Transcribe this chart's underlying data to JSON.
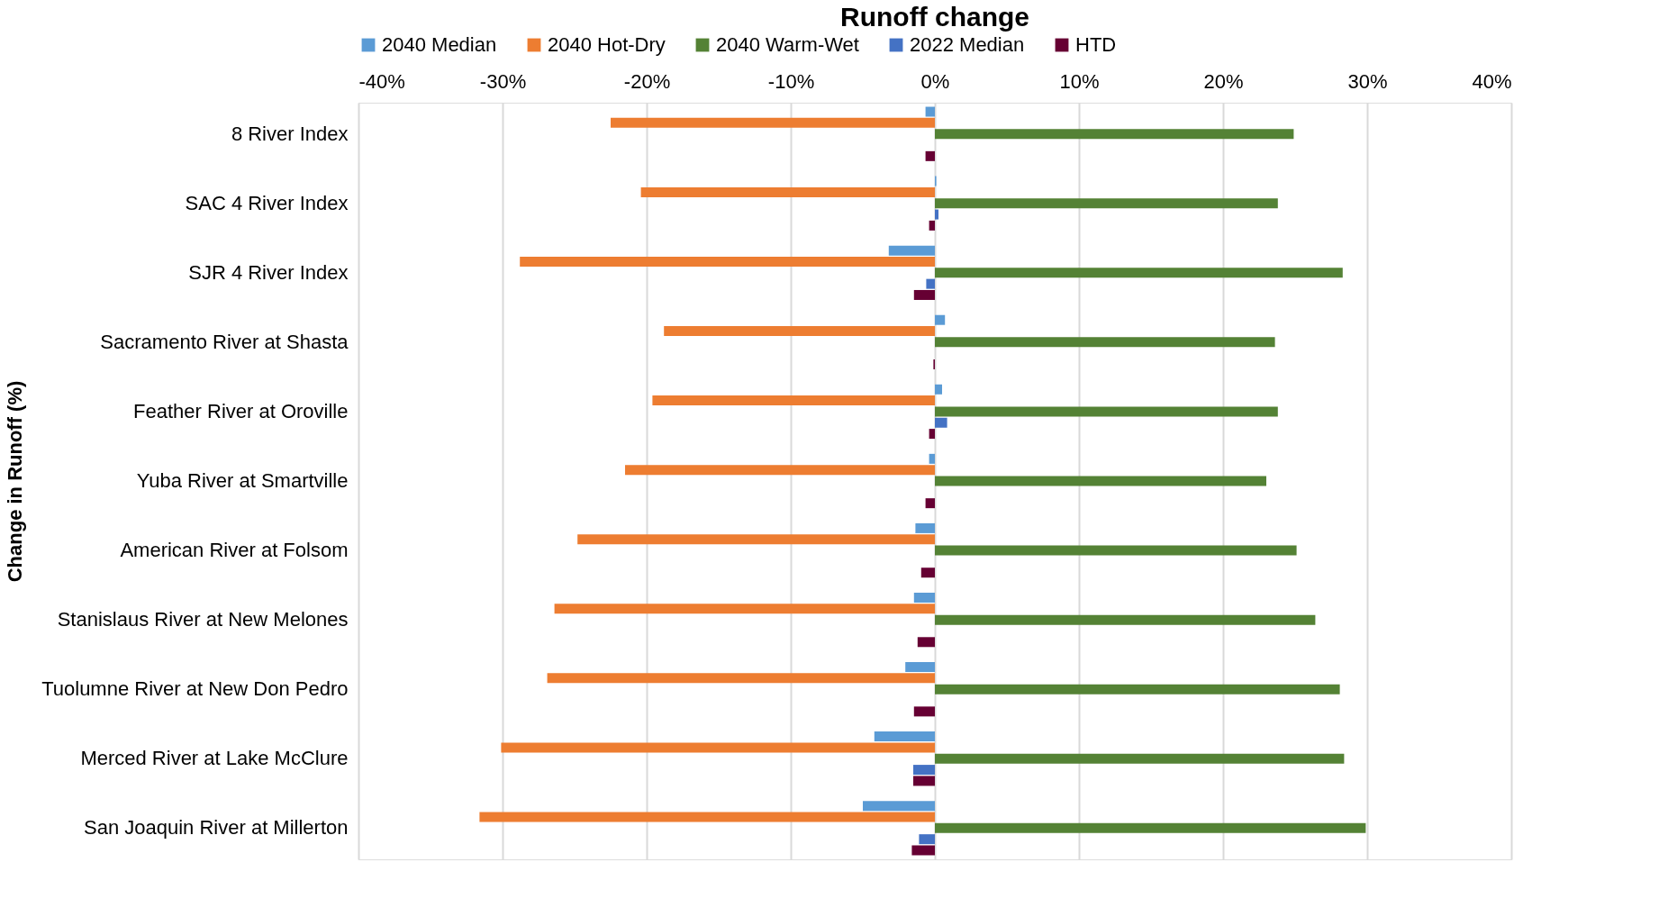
{
  "chart_data": {
    "type": "bar",
    "orientation": "horizontal",
    "title": "Runoff change",
    "ylabel": "Change in Runoff (%)",
    "categories": [
      "8 River Index",
      "SAC 4 River Index",
      "SJR 4 River Index",
      "Sacramento River at Shasta",
      "Feather River at Oroville",
      "Yuba River at Smartville",
      "American River at Folsom",
      "Stanislaus River at New Melones",
      "Tuolumne River at New Don Pedro",
      "Merced River at Lake McClure",
      "San Joaquin River at Millerton"
    ],
    "series": [
      {
        "name": "2040 Median",
        "color": "#5b9bd5",
        "values": [
          -0.65,
          0.1,
          -3.2,
          0.7,
          0.5,
          -0.4,
          -1.35,
          -1.45,
          -2.05,
          -4.2,
          -5.0
        ]
      },
      {
        "name": "2040 Hot-Dry",
        "color": "#ed7d31",
        "values": [
          -22.5,
          -20.4,
          -28.8,
          -18.8,
          -19.6,
          -21.5,
          -24.8,
          -26.4,
          -26.9,
          -30.1,
          -31.6
        ]
      },
      {
        "name": "2040 Warm-Wet",
        "color": "#548235",
        "values": [
          24.9,
          23.8,
          28.3,
          23.6,
          23.8,
          23.0,
          25.1,
          26.4,
          28.1,
          28.4,
          29.9
        ]
      },
      {
        "name": "2022 Median",
        "color": "#4472c4",
        "values": [
          null,
          0.25,
          -0.6,
          null,
          0.85,
          null,
          null,
          null,
          null,
          -1.5,
          -1.1
        ]
      },
      {
        "name": "HTD",
        "color": "#660033",
        "values": [
          -0.65,
          -0.4,
          -1.45,
          -0.1,
          -0.4,
          -0.65,
          -0.95,
          -1.2,
          -1.45,
          -1.5,
          -1.6
        ]
      }
    ],
    "xlim": [
      -40,
      40
    ],
    "xticks": [
      {
        "value": -40,
        "label": "-40%"
      },
      {
        "value": -30,
        "label": "-30%"
      },
      {
        "value": -20,
        "label": "-20%"
      },
      {
        "value": -10,
        "label": "-10%"
      },
      {
        "value": 0,
        "label": "0%"
      },
      {
        "value": 10,
        "label": "10%"
      },
      {
        "value": 20,
        "label": "20%"
      },
      {
        "value": 30,
        "label": "30%"
      },
      {
        "value": 40,
        "label": "40%"
      }
    ],
    "grid": "x",
    "legend": "top"
  }
}
